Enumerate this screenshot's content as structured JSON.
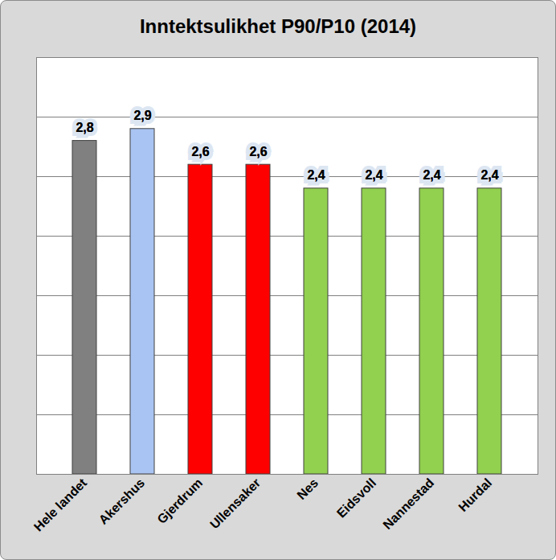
{
  "chart_data": {
    "type": "bar",
    "title": "Inntektsulikhet P90/P10 (2014)",
    "categories": [
      "Hele landet",
      "Akershus",
      "Gjerdrum",
      "Ullensaker",
      "Nes",
      "Eidsvoll",
      "Nannestad",
      "Hurdal"
    ],
    "values": [
      2.8,
      2.9,
      2.6,
      2.6,
      2.4,
      2.4,
      2.4,
      2.4
    ],
    "value_labels": [
      "2,8",
      "2,9",
      "2,6",
      "2,6",
      "2,4",
      "2,4",
      "2,4",
      "2,4"
    ],
    "colors": [
      "#808080",
      "#a9c4f2",
      "#ff0000",
      "#ff0000",
      "#92d050",
      "#92d050",
      "#92d050",
      "#92d050"
    ],
    "ylim": [
      0,
      3.5
    ],
    "yticks": [
      0,
      0.5,
      1,
      1.5,
      2,
      2.5,
      3,
      3.5
    ],
    "grid": true,
    "data_labels": true,
    "tick_labels": "x"
  }
}
